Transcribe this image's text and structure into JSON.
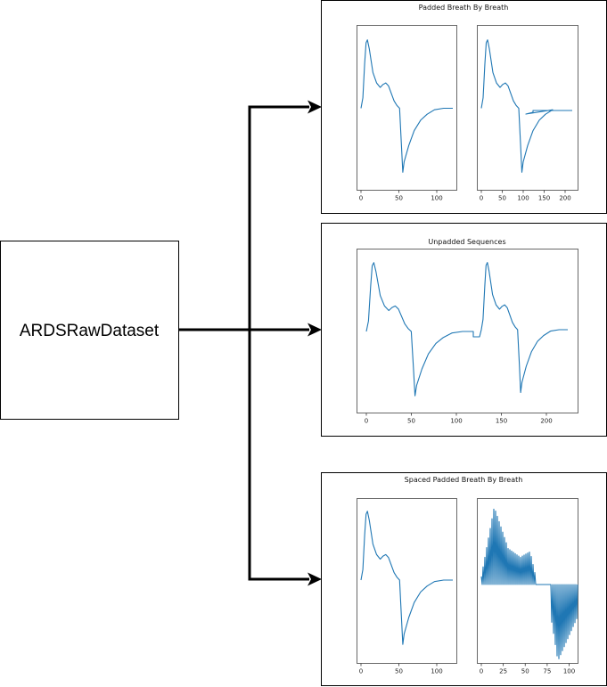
{
  "source_node": {
    "label": "ARDSRawDataset"
  },
  "panels": [
    {
      "title": "Padded Breath By Breath",
      "plots": [
        {
          "xticks": [
            "0",
            "50",
            "100"
          ]
        },
        {
          "xticks": [
            "0",
            "50",
            "100",
            "150",
            "200"
          ]
        }
      ]
    },
    {
      "title": "Unpadded Sequences",
      "plots": [
        {
          "xticks": [
            "0",
            "50",
            "100",
            "150",
            "200"
          ]
        }
      ]
    },
    {
      "title": "Spaced Padded Breath By Breath",
      "plots": [
        {
          "xticks": [
            "0",
            "50",
            "100"
          ]
        },
        {
          "xticks": [
            "0",
            "25",
            "50",
            "75",
            "100"
          ]
        }
      ]
    }
  ],
  "colors": {
    "series": "#1f77b4",
    "arrows": "#000000"
  }
}
